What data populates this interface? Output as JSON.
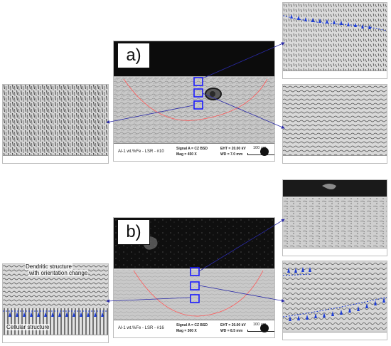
{
  "panels": {
    "a": {
      "label": "a)",
      "caption": "Al-1 wt.%Fe - LSR - #10",
      "signal": "Signal A = CZ BSD",
      "mag": "Mag =   450 X",
      "eht": "EHT = 20.00 kV",
      "wd": "WD =  7.0 mm",
      "scale": "100 µm"
    },
    "b": {
      "label": "b)",
      "caption": "Al-1 wt.%Fe - LSR - #16",
      "signal": "Signal A = CZ BSD",
      "mag": "Mag =   300 X",
      "eht": "EHT = 20.00 kV",
      "wd": "WD =  8.5 mm",
      "scale": "100 µm"
    }
  },
  "annotations": {
    "dendritic_line1": "Dendritic structure",
    "dendritic_line2": "with orientation change",
    "cellular": "Cellular structure"
  },
  "colors": {
    "box": "#1a1aff",
    "meltpool": "#ff5a5a",
    "arrow": "#1f3fd6",
    "connector": "#2a2aa8"
  }
}
